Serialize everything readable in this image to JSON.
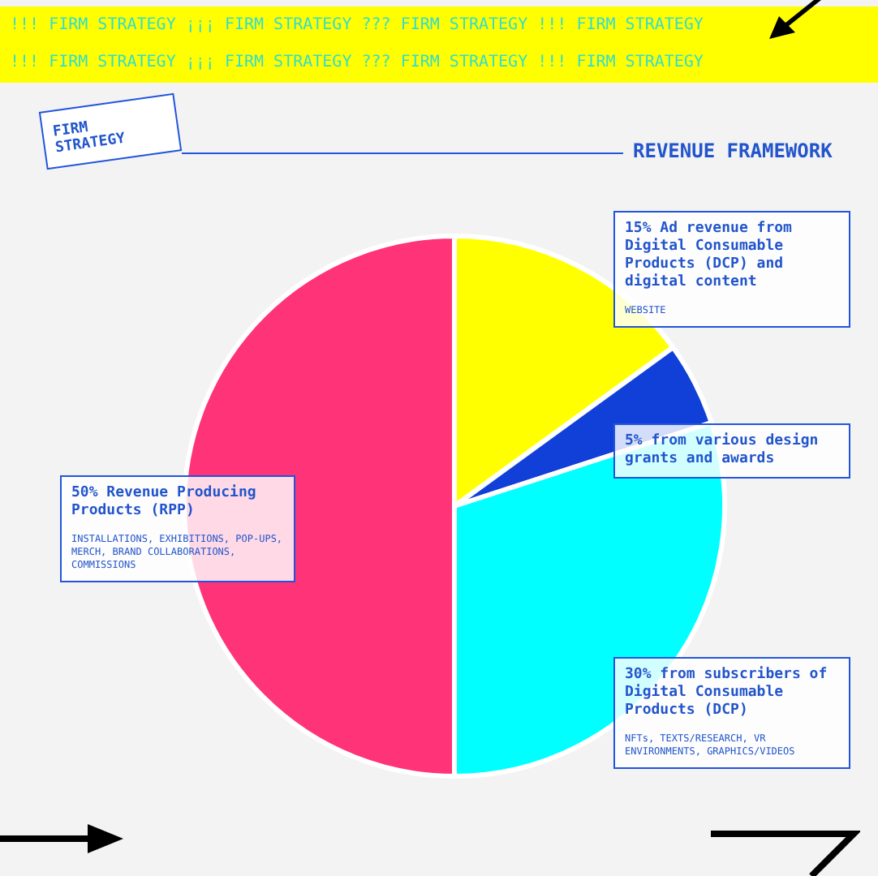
{
  "chart_data": {
    "type": "pie",
    "title": "REVENUE FRAMEWORK",
    "subtitle": "FIRM STRATEGY",
    "categories": [
      "15% Ad revenue from Digital Consumable Products (DCP) and digital content",
      "5% from various design grants and awards",
      "30% from subscribers of Digital Consumable Products (DCP)",
      "50% Revenue Producing Products (RPP)"
    ],
    "values": [
      15,
      5,
      30,
      50
    ],
    "colors": [
      "#ffff00",
      "#1040d8",
      "#00ffff",
      "#ff3377"
    ],
    "annotations": [
      "!!! FIRM STRATEGY ¡¡¡ FIRM STRATEGY ??? FIRM STRATEGY !!! FIRM STRATEGY",
      "!!! FIRM STRATEGY ¡¡¡ FIRM STRATEGY ??? FIRM STRATEGY !!! FIRM STRATEGY",
      "WEBSITE",
      "NFTs, TEXTS/RESEARCH, VR ENVIRONMENTS, GRAPHICS/VIDEOS",
      "INSTALLATIONS, EXHIBITIONS, POP-UPS, MERCH, BRAND COLLABORATIONS, COMMISSIONS"
    ],
    "legend": false
  }
}
